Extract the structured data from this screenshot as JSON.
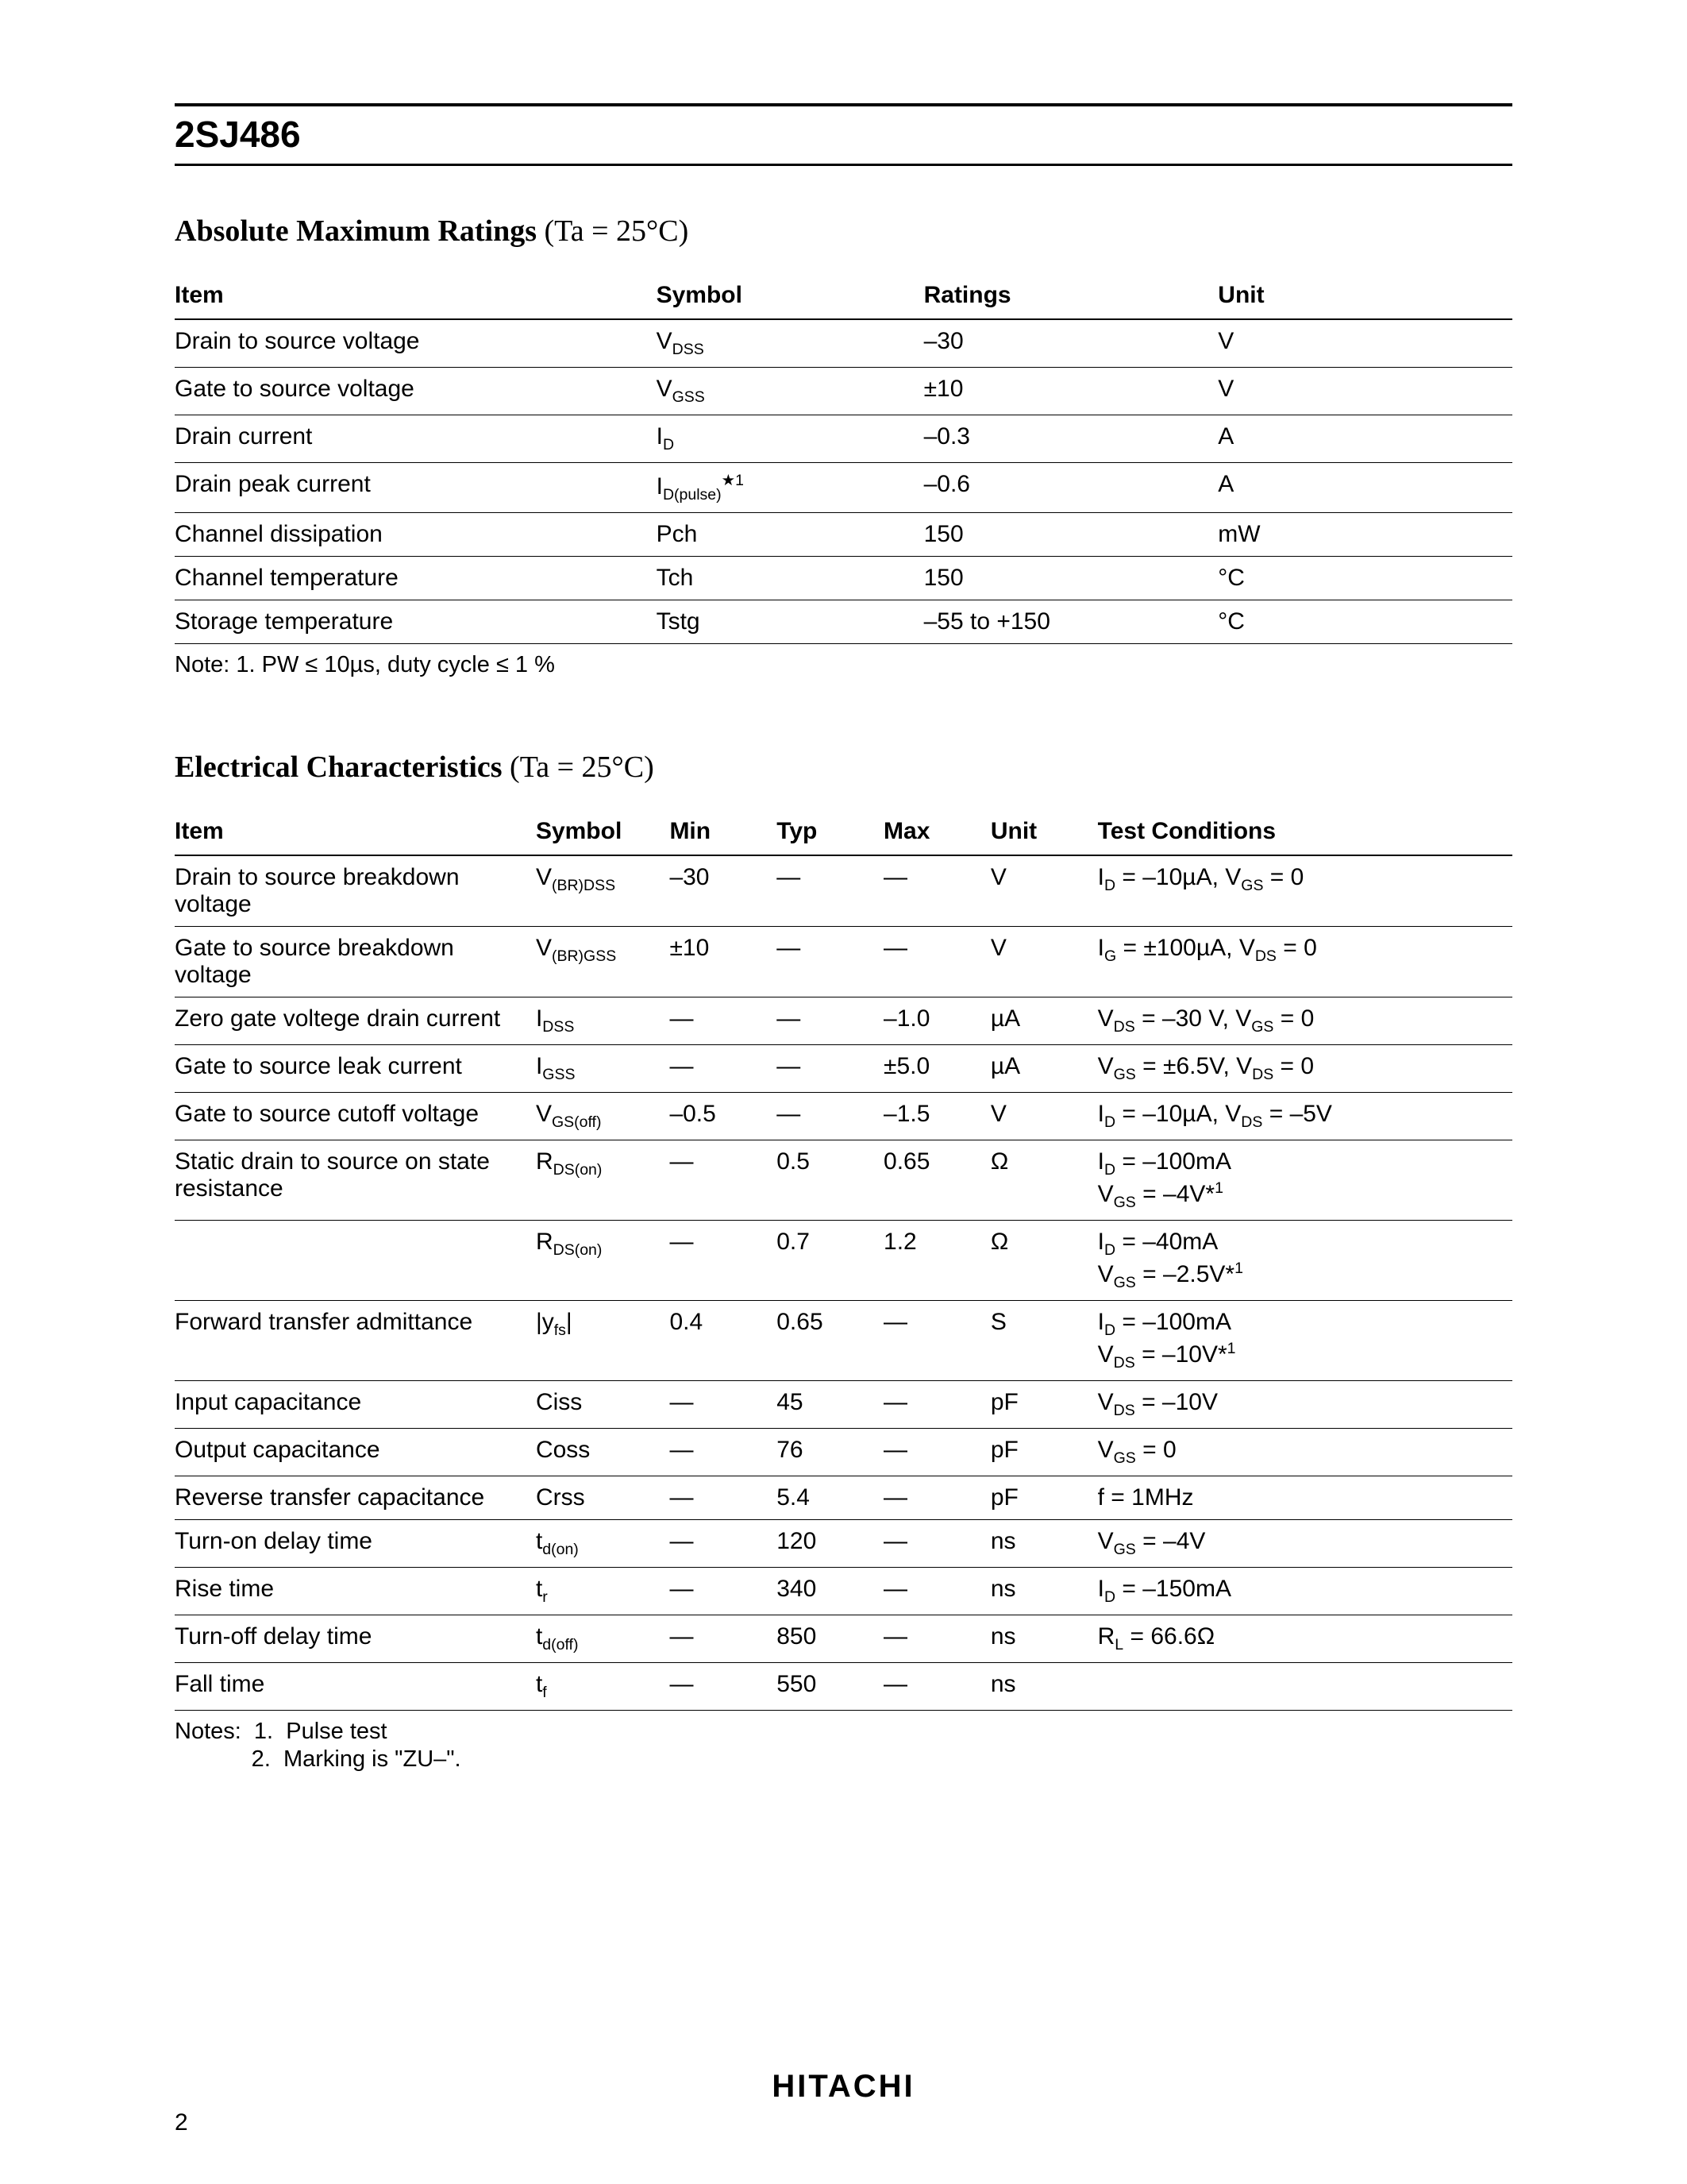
{
  "background_color": "#ffffff",
  "text_color": "#000000",
  "rule_color": "#000000",
  "part_number": "2SJ486",
  "manufacturer": "HITACHI",
  "page_number": "2",
  "section1": {
    "title_main": "Absolute Maximum Ratings",
    "title_cond": " (Ta = 25°C)",
    "columns": [
      "Item",
      "Symbol",
      "Ratings",
      "Unit"
    ],
    "col_widths": [
      "36%",
      "20%",
      "22%",
      "22%"
    ],
    "rows": [
      {
        "item": "Drain to source voltage",
        "symbol": "V<sub>DSS</sub>",
        "ratings": "–30",
        "unit": "V"
      },
      {
        "item": "Gate to source voltage",
        "symbol": "V<sub>GSS</sub>",
        "ratings": "±10",
        "unit": "V"
      },
      {
        "item": "Drain current",
        "symbol": "I<sub>D</sub>",
        "ratings": "–0.3",
        "unit": "A"
      },
      {
        "item": "Drain peak current",
        "symbol": "I<sub>D(pulse)</sub><sup>★1</sup>",
        "ratings": "–0.6",
        "unit": "A"
      },
      {
        "item": "Channel dissipation",
        "symbol": "Pch",
        "ratings": "150",
        "unit": "mW"
      },
      {
        "item": "Channel temperature",
        "symbol": "Tch",
        "ratings": "150",
        "unit": "°C"
      },
      {
        "item": "Storage temperature",
        "symbol": "Tstg",
        "ratings": "–55 to +150",
        "unit": "°C"
      }
    ],
    "note": "Note:   1.  PW ≤ 10µs, duty cycle ≤ 1 %"
  },
  "section2": {
    "title_main": "Electrical Characteristics",
    "title_cond": " (Ta = 25°C)",
    "columns": [
      "Item",
      "Symbol",
      "Min",
      "Typ",
      "Max",
      "Unit",
      "Test Conditions"
    ],
    "col_widths": [
      "27%",
      "10%",
      "8%",
      "8%",
      "8%",
      "8%",
      "31%"
    ],
    "rows": [
      {
        "item": "Drain to source breakdown voltage",
        "symbol": "V<sub>(BR)DSS</sub>",
        "min": "–30",
        "typ": "—",
        "max": "—",
        "unit": "V",
        "cond": "I<sub>D</sub> = –10µA, V<sub>GS</sub> = 0"
      },
      {
        "item": "Gate to source breakdown voltage",
        "symbol": "V<sub>(BR)GSS</sub>",
        "min": "±10",
        "typ": "—",
        "max": "—",
        "unit": "V",
        "cond": "I<sub>G</sub> = ±100µA, V<sub>DS</sub> = 0"
      },
      {
        "item": "Zero gate voltege drain current",
        "symbol": "I<sub>DSS</sub>",
        "min": "—",
        "typ": "—",
        "max": "–1.0",
        "unit": "µA",
        "cond": "V<sub>DS</sub> = –30 V, V<sub>GS</sub> = 0"
      },
      {
        "item": "Gate to source leak current",
        "symbol": "I<sub>GSS</sub>",
        "min": "—",
        "typ": "—",
        "max": "±5.0",
        "unit": "µA",
        "cond": "V<sub>GS</sub> = ±6.5V, V<sub>DS</sub> = 0"
      },
      {
        "item": "Gate to source cutoff voltage",
        "symbol": "V<sub>GS(off)</sub>",
        "min": "–0.5",
        "typ": "—",
        "max": "–1.5",
        "unit": "V",
        "cond": "I<sub>D</sub> = –10µA, V<sub>DS</sub> = –5V"
      },
      {
        "item": "Static drain to source on state resistance",
        "symbol": "R<sub>DS(on)</sub>",
        "min": "—",
        "typ": "0.5",
        "max": "0.65",
        "unit": "Ω",
        "cond": "I<sub>D</sub> = –100mA<br>V<sub>GS</sub> = –4V*<sup>1</sup>"
      },
      {
        "item": "",
        "symbol": "R<sub>DS(on)</sub>",
        "min": "—",
        "typ": "0.7",
        "max": "1.2",
        "unit": "Ω",
        "cond": "I<sub>D</sub> = –40mA<br>V<sub>GS</sub> = –2.5V*<sup>1</sup>"
      },
      {
        "item": "Forward transfer admittance",
        "symbol": "|y<sub>fs</sub>|",
        "min": "0.4",
        "typ": "0.65",
        "max": "—",
        "unit": "S",
        "cond": "I<sub>D</sub> = –100mA<br>V<sub>DS</sub> = –10V*<sup>1</sup>"
      },
      {
        "item": "Input capacitance",
        "symbol": "Ciss",
        "min": "—",
        "typ": "45",
        "max": "—",
        "unit": "pF",
        "cond": "V<sub>DS</sub> = –10V"
      },
      {
        "item": "Output capacitance",
        "symbol": "Coss",
        "min": "—",
        "typ": "76",
        "max": "—",
        "unit": "pF",
        "cond": "V<sub>GS</sub> = 0"
      },
      {
        "item": "Reverse transfer capacitance",
        "symbol": "Crss",
        "min": "—",
        "typ": "5.4",
        "max": "—",
        "unit": "pF",
        "cond": "f = 1MHz"
      },
      {
        "item": "Turn-on delay time",
        "symbol": "t<sub>d(on)</sub>",
        "min": "—",
        "typ": "120",
        "max": "—",
        "unit": "ns",
        "cond": "V<sub>GS</sub> = –4V"
      },
      {
        "item": "Rise time",
        "symbol": "t<sub>r</sub>",
        "min": "—",
        "typ": "340",
        "max": "—",
        "unit": "ns",
        "cond": "I<sub>D</sub> = –150mA"
      },
      {
        "item": "Turn-off delay time",
        "symbol": "t<sub>d(off)</sub>",
        "min": "—",
        "typ": "850",
        "max": "—",
        "unit": "ns",
        "cond": "R<sub>L</sub> = 66.6Ω"
      },
      {
        "item": "Fall time",
        "symbol": "t<sub>f</sub>",
        "min": "—",
        "typ": "550",
        "max": "—",
        "unit": "ns",
        "cond": ""
      }
    ],
    "notes": [
      "Notes:  1.  Pulse test",
      "            2.  Marking is \"ZU–\"."
    ]
  }
}
